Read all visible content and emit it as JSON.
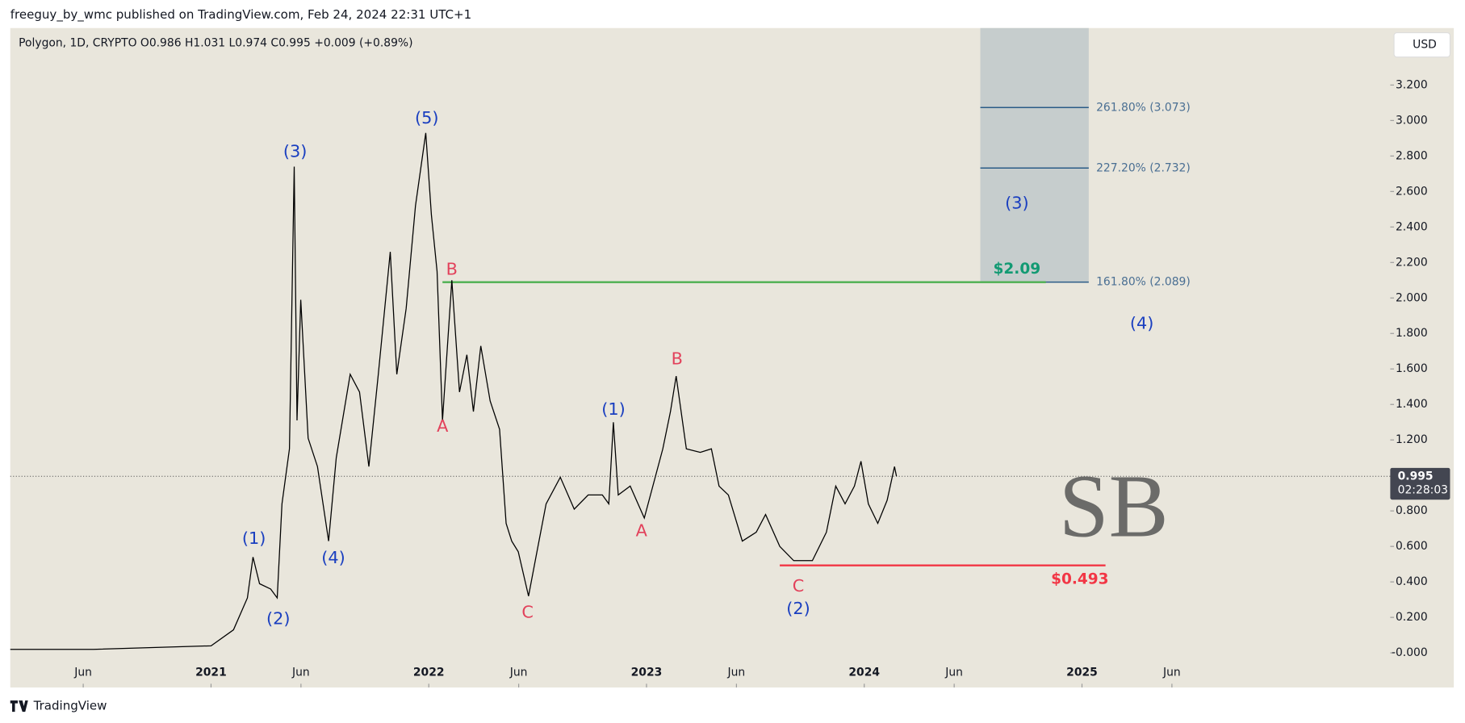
{
  "header": "freeguy_by_wmc published on TradingView.com, Feb 24, 2024 22:31 UTC+1",
  "footer": "TradingView",
  "currency_button": "USD",
  "watermark": "SB",
  "chart_data": {
    "type": "line",
    "subtitle": "Polygon, 1D, CRYPTO  O0.986  H1.031  L0.974  C0.995  +0.009 (+0.89%)",
    "color": "#000000",
    "x": [
      2020.078,
      2020.46,
      2021.0,
      2021.103,
      2021.167,
      2021.193,
      2021.223,
      2021.274,
      2021.304,
      2021.326,
      2021.36,
      2021.382,
      2021.395,
      2021.412,
      2021.446,
      2021.489,
      2021.54,
      2021.575,
      2021.639,
      2021.682,
      2021.725,
      2021.768,
      2021.823,
      2021.853,
      2021.896,
      2021.939,
      2021.986,
      2022.012,
      2022.038,
      2022.063,
      2022.106,
      2022.141,
      2022.175,
      2022.205,
      2022.239,
      2022.282,
      2022.325,
      2022.355,
      2022.381,
      2022.411,
      2022.458,
      2022.497,
      2022.539,
      2022.604,
      2022.668,
      2022.732,
      2022.797,
      2022.827,
      2022.848,
      2022.87,
      2022.925,
      2022.99,
      2023.075,
      2023.11,
      2023.136,
      2023.183,
      2023.247,
      2023.298,
      2023.333,
      2023.376,
      2023.44,
      2023.504,
      2023.547,
      2023.612,
      2023.676,
      2023.762,
      2023.826,
      2023.869,
      2023.912,
      2023.955,
      2023.985,
      2024.019,
      2024.062,
      2024.105,
      2024.139,
      2024.148
    ],
    "values": [
      0.02,
      0.02,
      0.04,
      0.13,
      0.31,
      0.54,
      0.39,
      0.36,
      0.31,
      0.84,
      1.15,
      2.74,
      1.31,
      1.99,
      1.21,
      1.05,
      0.63,
      1.1,
      1.57,
      1.47,
      1.05,
      1.57,
      2.26,
      1.57,
      1.94,
      2.52,
      2.93,
      2.47,
      2.15,
      1.31,
      2.1,
      1.47,
      1.68,
      1.36,
      1.73,
      1.42,
      1.26,
      0.73,
      0.63,
      0.57,
      0.32,
      0.57,
      0.84,
      0.99,
      0.81,
      0.89,
      0.89,
      0.84,
      1.3,
      0.89,
      0.94,
      0.76,
      1.15,
      1.36,
      1.56,
      1.15,
      1.13,
      1.15,
      0.94,
      0.89,
      0.63,
      0.68,
      0.78,
      0.6,
      0.52,
      0.52,
      0.68,
      0.94,
      0.84,
      0.94,
      1.08,
      0.84,
      0.73,
      0.86,
      1.05,
      0.995
    ],
    "xlim": [
      2020.078,
      2026.39
    ],
    "xticks": [
      {
        "value": 2020.413,
        "label": "Jun"
      },
      {
        "value": 2021,
        "label": "2021"
      },
      {
        "value": 2021.413,
        "label": "Jun"
      },
      {
        "value": 2022,
        "label": "2022"
      },
      {
        "value": 2022.413,
        "label": "Jun"
      },
      {
        "value": 2023,
        "label": "2023"
      },
      {
        "value": 2023.413,
        "label": "Jun"
      },
      {
        "value": 2024,
        "label": "2024"
      },
      {
        "value": 2024.413,
        "label": "Jun"
      },
      {
        "value": 2025,
        "label": "2025"
      },
      {
        "value": 2025.413,
        "label": "Jun"
      }
    ],
    "ylim": [
      -0.195,
      3.521
    ],
    "yticks": [
      {
        "value": 0,
        "label": "-0.000"
      },
      {
        "value": 0.2,
        "label": "0.200"
      },
      {
        "value": 0.4,
        "label": "0.400"
      },
      {
        "value": 0.6,
        "label": "0.600"
      },
      {
        "value": 0.8,
        "label": "0.800"
      },
      {
        "value": 1.0,
        "label": "1.000"
      },
      {
        "value": 1.2,
        "label": "1.200"
      },
      {
        "value": 1.4,
        "label": "1.400"
      },
      {
        "value": 1.6,
        "label": "1.600"
      },
      {
        "value": 1.8,
        "label": "1.800"
      },
      {
        "value": 2.0,
        "label": "2.000"
      },
      {
        "value": 2.2,
        "label": "2.200"
      },
      {
        "value": 2.4,
        "label": "2.400"
      },
      {
        "value": 2.6,
        "label": "2.600"
      },
      {
        "value": 2.8,
        "label": "2.800"
      },
      {
        "value": 3.0,
        "label": "3.000"
      },
      {
        "value": 3.2,
        "label": "3.200"
      }
    ],
    "last_price": {
      "value": 0.995,
      "label": "0.995",
      "countdown": "02:28:03"
    },
    "annotations": [
      {
        "text": "(1)",
        "x": 2021.197,
        "y": 0.642,
        "color": "#1a3fc0"
      },
      {
        "text": "(2)",
        "x": 2021.309,
        "y": 0.189,
        "color": "#1a3fc0"
      },
      {
        "text": "(3)",
        "x": 2021.386,
        "y": 2.821,
        "color": "#1a3fc0"
      },
      {
        "text": "(4)",
        "x": 2021.562,
        "y": 0.532,
        "color": "#1a3fc0"
      },
      {
        "text": "(5)",
        "x": 2021.991,
        "y": 3.011,
        "color": "#1a3fc0"
      },
      {
        "text": "B",
        "x": 2022.106,
        "y": 2.158,
        "color": "#e2405a"
      },
      {
        "text": "A",
        "x": 2022.063,
        "y": 1.274,
        "color": "#e2405a"
      },
      {
        "text": "C",
        "x": 2022.454,
        "y": 0.226,
        "color": "#e2405a"
      },
      {
        "text": "(1)",
        "x": 2022.848,
        "y": 1.368,
        "color": "#1a3fc0"
      },
      {
        "text": "A",
        "x": 2022.977,
        "y": 0.684,
        "color": "#e2405a"
      },
      {
        "text": "B",
        "x": 2023.14,
        "y": 1.653,
        "color": "#e2405a"
      },
      {
        "text": "C",
        "x": 2023.697,
        "y": 0.374,
        "color": "#e2405a"
      },
      {
        "text": "(2)",
        "x": 2023.697,
        "y": 0.247,
        "color": "#1a3fc0"
      },
      {
        "text": "(3)",
        "x": 2024.701,
        "y": 2.532,
        "color": "#1a3fc0"
      },
      {
        "text": "(4)",
        "x": 2025.275,
        "y": 1.853,
        "color": "#1a3fc0"
      }
    ],
    "hlines": [
      {
        "value": 2.089,
        "x": [
          2022.063,
          2024.834
        ],
        "color": "#4caf50",
        "label": "$2.09",
        "label_x": 2024.701,
        "label_color": "#129a73"
      },
      {
        "value": 0.493,
        "x": [
          2023.612,
          2025.108
        ],
        "color": "#f23645",
        "label": "$0.493",
        "label_x": 2024.99,
        "label_color": "#f23645"
      }
    ],
    "fib_box": {
      "x": [
        2024.533,
        2025.031
      ],
      "top": 3.521,
      "bottom": 2.089,
      "color": "#c6cdcd",
      "levels": [
        {
          "value": 3.073,
          "label": "261.80% (3.073)"
        },
        {
          "value": 2.732,
          "label": "227.20% (2.732)"
        },
        {
          "value": 2.089,
          "label": "161.80% (2.089)"
        }
      ]
    }
  }
}
